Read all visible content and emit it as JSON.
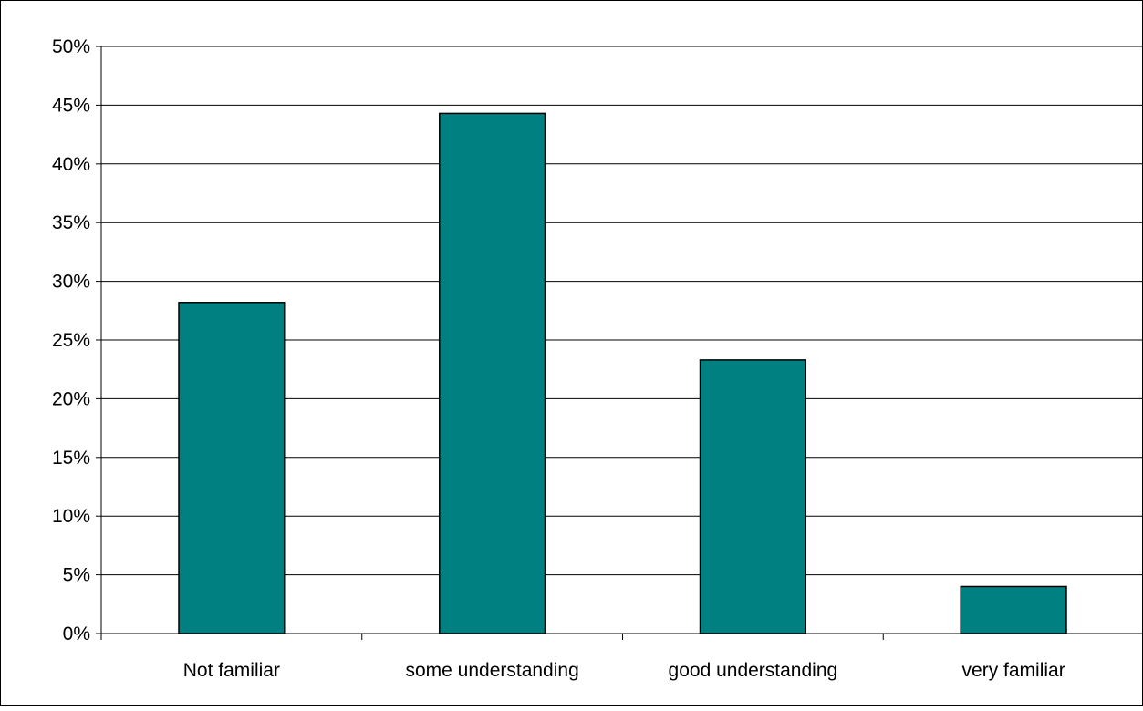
{
  "chart_data": {
    "type": "bar",
    "title": "",
    "xlabel": "",
    "ylabel": "",
    "categories": [
      "Not familiar",
      "some understanding",
      "good understanding",
      "very familiar"
    ],
    "values": [
      28.2,
      44.3,
      23.3,
      4.0
    ],
    "ylim": [
      0,
      50
    ],
    "y_ticks": [
      0,
      5,
      10,
      15,
      20,
      25,
      30,
      35,
      40,
      45,
      50
    ],
    "y_tick_labels": [
      "0%",
      "5%",
      "10%",
      "15%",
      "20%",
      "25%",
      "30%",
      "35%",
      "40%",
      "45%",
      "50%"
    ],
    "grid": true,
    "legend": "none",
    "colors": {
      "bar_fill": "#008080",
      "bar_stroke": "#000000",
      "grid": "#000000",
      "axis": "#000000"
    }
  }
}
